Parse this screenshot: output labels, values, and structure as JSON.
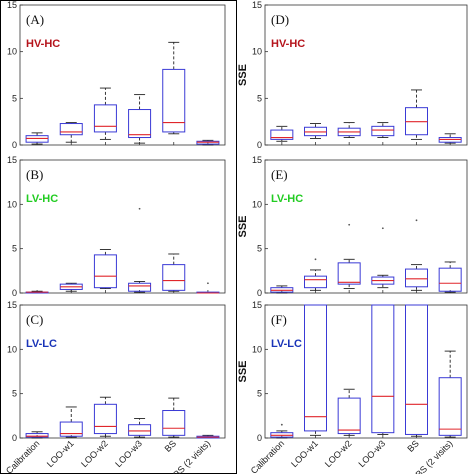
{
  "chart_data": [
    {
      "type": "box",
      "panel_label": "(A)",
      "group_title": "HV-HC",
      "group_color": "#b5141c",
      "ylabel": "",
      "ylim": [
        0,
        15
      ],
      "yticks": [
        0,
        5,
        10,
        15
      ],
      "categories": [
        "Calibration",
        "LOO-w1",
        "LOO-w2",
        "LOO-w3",
        "BS",
        "BS (2 visits)"
      ],
      "boxes": [
        {
          "whislo": 0.1,
          "q1": 0.3,
          "med": 0.7,
          "q3": 1.0,
          "whishi": 1.3,
          "outliers": []
        },
        {
          "whislo": 0.3,
          "q1": 1.1,
          "med": 1.4,
          "q3": 2.3,
          "whishi": 2.4,
          "outliers": []
        },
        {
          "whislo": 0.6,
          "q1": 1.4,
          "med": 2.0,
          "q3": 4.3,
          "whishi": 6.1,
          "outliers": []
        },
        {
          "whislo": 0.2,
          "q1": 0.8,
          "med": 1.1,
          "q3": 3.8,
          "whishi": 5.4,
          "outliers": []
        },
        {
          "whislo": 1.2,
          "q1": 1.4,
          "med": 2.4,
          "q3": 8.1,
          "whishi": 11.0,
          "outliers": []
        },
        {
          "whislo": 0.0,
          "q1": 0.1,
          "med": 0.3,
          "q3": 0.4,
          "whishi": 0.5,
          "outliers": []
        }
      ]
    },
    {
      "type": "box",
      "panel_label": "(B)",
      "group_title": "LV-HC",
      "group_color": "#22cc22",
      "ylabel": "",
      "ylim": [
        0,
        15
      ],
      "yticks": [
        0,
        5,
        10,
        15
      ],
      "categories": [
        "Calibration",
        "LOO-w1",
        "LOO-w2",
        "LOO-w3",
        "BS",
        "BS (2 visits)"
      ],
      "boxes": [
        {
          "whislo": 0.0,
          "q1": 0.0,
          "med": 0.1,
          "q3": 0.1,
          "whishi": 0.2,
          "outliers": []
        },
        {
          "whislo": 0.2,
          "q1": 0.4,
          "med": 0.7,
          "q3": 1.0,
          "whishi": 1.1,
          "outliers": []
        },
        {
          "whislo": 0.5,
          "q1": 0.6,
          "med": 1.9,
          "q3": 4.3,
          "whishi": 4.9,
          "outliers": []
        },
        {
          "whislo": 0.1,
          "q1": 0.2,
          "med": 0.8,
          "q3": 1.1,
          "whishi": 1.3,
          "outliers": [
            9.5
          ]
        },
        {
          "whislo": 0.2,
          "q1": 0.3,
          "med": 1.4,
          "q3": 3.2,
          "whishi": 4.4,
          "outliers": []
        },
        {
          "whislo": 0.0,
          "q1": 0.0,
          "med": 0.0,
          "q3": 0.1,
          "whishi": 0.1,
          "outliers": [
            1.1
          ]
        }
      ]
    },
    {
      "type": "box",
      "panel_label": "(C)",
      "group_title": "LV-LC",
      "group_color": "#1a34b8",
      "ylabel": "",
      "ylim": [
        0,
        15
      ],
      "yticks": [
        0,
        5,
        10,
        15
      ],
      "categories": [
        "Calibration",
        "LOO-w1",
        "LOO-w2",
        "LOO-w3",
        "BS",
        "BS (2 visits)"
      ],
      "boxes": [
        {
          "whislo": 0.0,
          "q1": 0.1,
          "med": 0.2,
          "q3": 0.5,
          "whishi": 0.7,
          "outliers": []
        },
        {
          "whislo": 0.1,
          "q1": 0.2,
          "med": 0.5,
          "q3": 1.8,
          "whishi": 3.5,
          "outliers": []
        },
        {
          "whislo": 0.2,
          "q1": 0.5,
          "med": 1.3,
          "q3": 3.8,
          "whishi": 4.6,
          "outliers": []
        },
        {
          "whislo": 0.1,
          "q1": 0.3,
          "med": 0.8,
          "q3": 1.5,
          "whishi": 2.2,
          "outliers": []
        },
        {
          "whislo": 0.1,
          "q1": 0.3,
          "med": 1.1,
          "q3": 3.1,
          "whishi": 4.5,
          "outliers": []
        },
        {
          "whislo": 0.0,
          "q1": 0.0,
          "med": 0.1,
          "q3": 0.2,
          "whishi": 0.3,
          "outliers": []
        }
      ]
    },
    {
      "type": "box",
      "panel_label": "(D)",
      "group_title": "HV-HC",
      "group_color": "#b5141c",
      "ylabel": "SSE",
      "ylim": [
        0,
        15
      ],
      "yticks": [
        0,
        5,
        10,
        15
      ],
      "categories": [
        "Calibration",
        "LOO-w1",
        "LOO-w2",
        "LOO-w3",
        "BS",
        "BS (2 visits)"
      ],
      "boxes": [
        {
          "whislo": 0.4,
          "q1": 0.6,
          "med": 0.8,
          "q3": 1.6,
          "whishi": 2.0,
          "outliers": []
        },
        {
          "whislo": 0.7,
          "q1": 1.0,
          "med": 1.4,
          "q3": 1.9,
          "whishi": 2.3,
          "outliers": []
        },
        {
          "whislo": 0.8,
          "q1": 1.0,
          "med": 1.4,
          "q3": 1.8,
          "whishi": 2.4,
          "outliers": []
        },
        {
          "whislo": 0.8,
          "q1": 1.0,
          "med": 1.6,
          "q3": 2.0,
          "whishi": 2.4,
          "outliers": []
        },
        {
          "whislo": 0.6,
          "q1": 1.1,
          "med": 2.5,
          "q3": 4.0,
          "whishi": 5.9,
          "outliers": []
        },
        {
          "whislo": 0.2,
          "q1": 0.3,
          "med": 0.6,
          "q3": 0.8,
          "whishi": 1.2,
          "outliers": []
        }
      ]
    },
    {
      "type": "box",
      "panel_label": "(E)",
      "group_title": "LV-HC",
      "group_color": "#22cc22",
      "ylabel": "SSE",
      "ylim": [
        0,
        15
      ],
      "yticks": [
        0,
        5,
        10,
        15
      ],
      "categories": [
        "Calibration",
        "LOO-w1",
        "LOO-w2",
        "LOO-w3",
        "BS",
        "BS (2 visits)"
      ],
      "boxes": [
        {
          "whislo": 0.0,
          "q1": 0.1,
          "med": 0.3,
          "q3": 0.6,
          "whishi": 0.8,
          "outliers": []
        },
        {
          "whislo": 0.3,
          "q1": 0.6,
          "med": 1.5,
          "q3": 1.9,
          "whishi": 2.6,
          "outliers": [
            3.8
          ]
        },
        {
          "whislo": 0.5,
          "q1": 1.0,
          "med": 1.2,
          "q3": 3.4,
          "whishi": 3.8,
          "outliers": [
            7.7
          ]
        },
        {
          "whislo": 0.6,
          "q1": 1.0,
          "med": 1.4,
          "q3": 1.8,
          "whishi": 2.0,
          "outliers": [
            7.3
          ]
        },
        {
          "whislo": 0.3,
          "q1": 0.7,
          "med": 1.6,
          "q3": 2.7,
          "whishi": 3.2,
          "outliers": [
            8.2
          ]
        },
        {
          "whislo": 0.1,
          "q1": 0.2,
          "med": 1.1,
          "q3": 2.8,
          "whishi": 3.5,
          "outliers": []
        }
      ]
    },
    {
      "type": "box",
      "panel_label": "(F)",
      "group_title": "LV-LC",
      "group_color": "#1a34b8",
      "ylabel": "SSE",
      "ylim": [
        0,
        15
      ],
      "yticks": [
        0,
        5,
        10,
        15
      ],
      "categories": [
        "Calibration",
        "LOO-w1",
        "LOO-w2",
        "LOO-w3",
        "BS",
        "BS (2 visits)"
      ],
      "boxes": [
        {
          "whislo": 0.0,
          "q1": 0.1,
          "med": 0.3,
          "q3": 0.6,
          "whishi": 0.8,
          "outliers": [
            1.5
          ]
        },
        {
          "whislo": 0.3,
          "q1": 0.8,
          "med": 2.4,
          "q3": 15,
          "whishi": 15,
          "outliers": []
        },
        {
          "whislo": 0.3,
          "q1": 0.5,
          "med": 0.9,
          "q3": 4.5,
          "whishi": 5.5,
          "outliers": []
        },
        {
          "whislo": 0.4,
          "q1": 0.6,
          "med": 4.7,
          "q3": 15,
          "whishi": 15,
          "outliers": []
        },
        {
          "whislo": 0.2,
          "q1": 0.4,
          "med": 3.8,
          "q3": 15,
          "whishi": 15,
          "outliers": []
        },
        {
          "whislo": 0.1,
          "q1": 0.3,
          "med": 1.0,
          "q3": 6.8,
          "whishi": 9.8,
          "outliers": []
        }
      ]
    }
  ]
}
